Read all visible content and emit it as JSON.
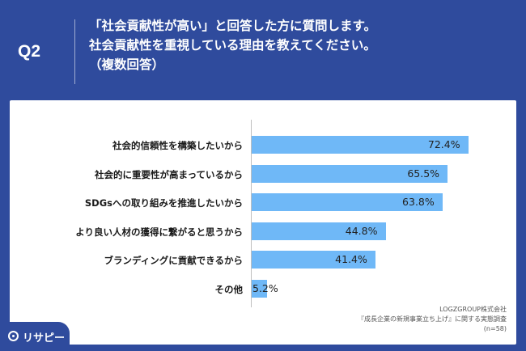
{
  "header": {
    "badge": "Q2",
    "question_lines": [
      "「社会貢献性が高い」と回答した方に質問します。",
      "社会貢献性を重視している理由を教えてください。",
      "（複数回答）"
    ]
  },
  "chart_data": {
    "type": "bar",
    "orientation": "horizontal",
    "categories": [
      "社会的信頼性を構築したいから",
      "社会的に重要性が高まっているから",
      "SDGsへの取り組みを推進したいから",
      "より良い人材の獲得に繋がると思うから",
      "ブランディングに貢献できるから",
      "その他"
    ],
    "values": [
      72.4,
      65.5,
      63.8,
      44.8,
      41.4,
      5.2
    ],
    "value_labels": [
      "72.4%",
      "65.5%",
      "63.8%",
      "44.8%",
      "41.4%",
      "5.2%"
    ],
    "xlim": [
      0,
      100
    ],
    "bar_color": "#6fb8f7",
    "grid": false
  },
  "source": {
    "company": "LOGZGROUP株式会社",
    "survey": "『成長企業の新規事業立ち上げ』に関する実態調査",
    "sample": "(n=58)"
  },
  "logo": {
    "text": "リサピー"
  },
  "colors": {
    "background": "#2f4b9d",
    "panel": "#ffffff"
  }
}
